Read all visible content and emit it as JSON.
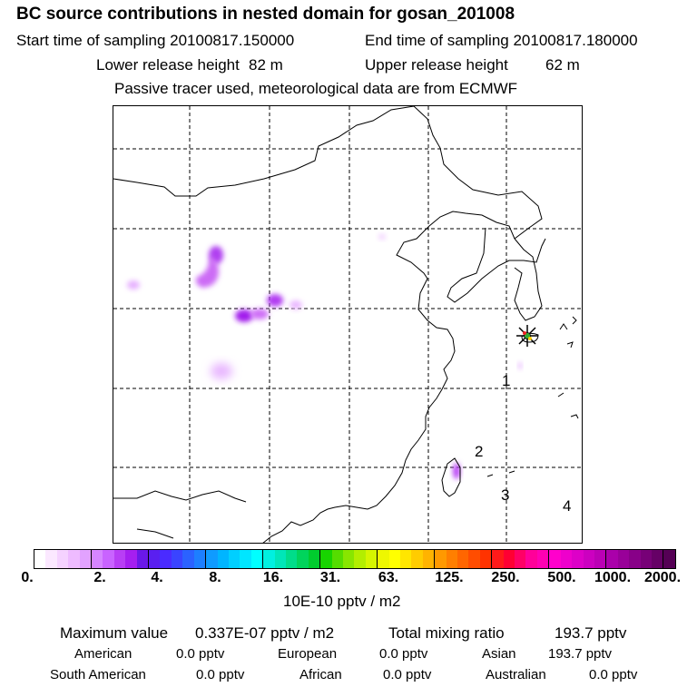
{
  "header": {
    "title": "BC  source contributions in nested domain for gosan_201008",
    "start_label": "Start time of sampling 20100817.150000",
    "end_label": "End time of sampling 20100817.180000",
    "lower_label": "Lower release height",
    "lower_value": "82 m",
    "upper_label": "Upper release height",
    "upper_value": "62 m",
    "tracer_note": "Passive tracer used, meteorological data are from ECMWF"
  },
  "map": {
    "region_labels": [
      "1",
      "2",
      "3",
      "4"
    ],
    "receptor_marker": "receptor-star-icon"
  },
  "colorbar": {
    "tick_labels": [
      "0.",
      "2.",
      "4.",
      "8.",
      "16.",
      "31.",
      "63.",
      "125.",
      "250.",
      "500.",
      "1000.",
      "2000."
    ],
    "unit": "10E-10 pptv / m2",
    "colors": [
      "#ffffff",
      "#fbe8ff",
      "#f5d2ff",
      "#eebbff",
      "#e2a2ff",
      "#d685ff",
      "#c963ff",
      "#b83ef5",
      "#a51ff0",
      "#6a18e8",
      "#5a1ff0",
      "#4a2bff",
      "#3a44ff",
      "#2b62ff",
      "#1d7fff",
      "#0f9bff",
      "#00b5ff",
      "#00cfff",
      "#00e6ff",
      "#00ffff",
      "#00f0e0",
      "#00e6b8",
      "#00dd8a",
      "#00d45c",
      "#00cc2e",
      "#18d400",
      "#55dd00",
      "#88e600",
      "#b3ee00",
      "#d6f500",
      "#eef700",
      "#ffff00",
      "#ffe600",
      "#ffcc00",
      "#ffb300",
      "#ff9900",
      "#ff7f00",
      "#ff6600",
      "#ff4d00",
      "#ff3300",
      "#ff1a1a",
      "#ff0033",
      "#ff0066",
      "#ff0099",
      "#ff00b3",
      "#ff00cc",
      "#ee00cc",
      "#dd00c8",
      "#cc00c0",
      "#bb00b5",
      "#aa00aa",
      "#990099",
      "#880088",
      "#770077",
      "#660066",
      "#550055"
    ]
  },
  "stats": {
    "max_label": "Maximum value",
    "max_value": "0.337E-07 pptv / m2",
    "total_label": "Total mixing ratio",
    "total_value": "193.7 pptv",
    "american_label": "American",
    "american_value": "0.0 pptv",
    "european_label": "European",
    "european_value": "0.0 pptv",
    "asian_label": "Asian",
    "asian_value": "193.7 pptv",
    "south_american_label": "South American",
    "south_american_value": "0.0 pptv",
    "african_label": "African",
    "african_value": "0.0 pptv",
    "australian_label": "Australian",
    "australian_value": "0.0 pptv"
  }
}
